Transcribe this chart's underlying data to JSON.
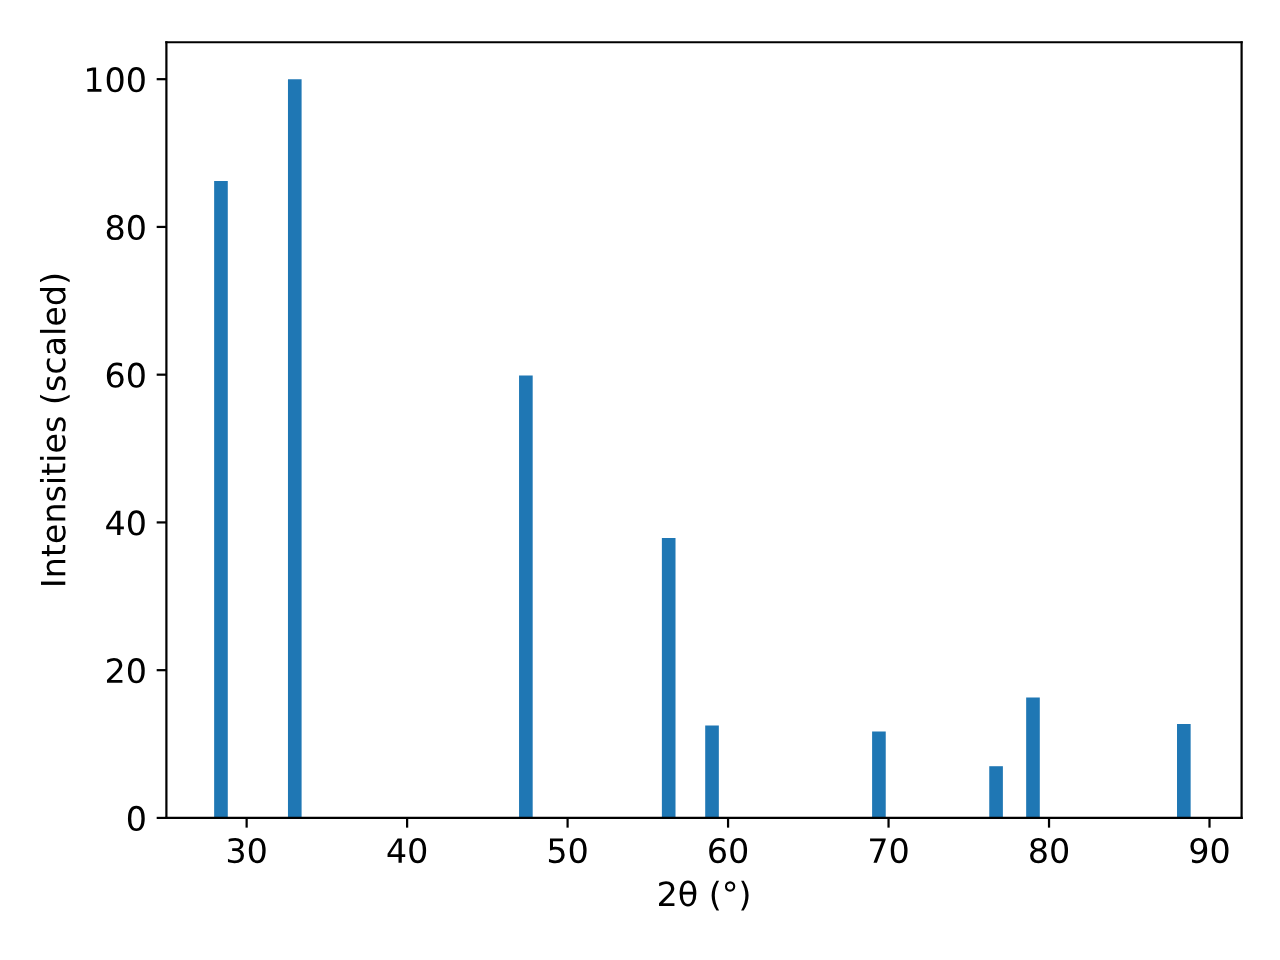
{
  "chart_data": {
    "type": "bar",
    "xlabel": "2θ (°)",
    "ylabel": "Intensities (scaled)",
    "x": [
      28.4,
      33.0,
      47.4,
      56.3,
      59.0,
      69.4,
      76.7,
      79.0,
      88.4
    ],
    "values": [
      86.2,
      100,
      59.9,
      37.9,
      12.5,
      11.7,
      7.0,
      16.3,
      12.7
    ],
    "color": "#1f77b4",
    "xlim": [
      25,
      92
    ],
    "xticks": [
      30,
      40,
      50,
      60,
      70,
      80,
      90
    ],
    "ylim": [
      0,
      105
    ],
    "yticks": [
      0,
      20,
      40,
      60,
      80,
      100
    ],
    "grid": false
  }
}
